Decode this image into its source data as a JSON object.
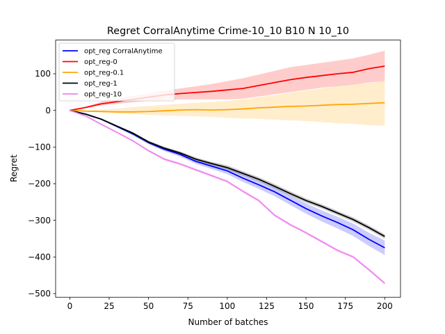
{
  "chart_data": {
    "type": "line",
    "title": "Regret CorralAnytime Crime-10_10 B10 N 10_10",
    "xlabel": "Number of batches",
    "ylabel": "Regret",
    "xlim": [
      -9,
      210
    ],
    "ylim": [
      -510,
      192
    ],
    "xticks": [
      0,
      25,
      50,
      75,
      100,
      125,
      150,
      175,
      200
    ],
    "yticks": [
      -500,
      -400,
      -300,
      -200,
      -100,
      0,
      100
    ],
    "grid": false,
    "legend_position": "top-left",
    "series": [
      {
        "name": "opt_reg CorralAnytime",
        "color": "#0000ff",
        "x": [
          0,
          10,
          20,
          30,
          40,
          50,
          60,
          70,
          80,
          90,
          100,
          110,
          120,
          130,
          140,
          150,
          160,
          170,
          180,
          190,
          200
        ],
        "y": [
          0,
          -10,
          -24,
          -44,
          -64,
          -88,
          -106,
          -120,
          -139,
          -152,
          -165,
          -185,
          -203,
          -222,
          -245,
          -268,
          -288,
          -306,
          -326,
          -352,
          -375
        ],
        "band_low": [
          0,
          -11,
          -26,
          -47,
          -68,
          -92,
          -111,
          -126,
          -146,
          -160,
          -174,
          -195,
          -214,
          -234,
          -258,
          -282,
          -303,
          -322,
          -343,
          -370,
          -395
        ],
        "band_high": [
          0,
          -9,
          -22,
          -41,
          -60,
          -84,
          -101,
          -114,
          -132,
          -144,
          -156,
          -175,
          -192,
          -210,
          -232,
          -254,
          -273,
          -290,
          -309,
          -334,
          -355
        ]
      },
      {
        "name": "opt_reg-0",
        "color": "#ff0000",
        "x": [
          0,
          10,
          20,
          30,
          40,
          50,
          60,
          70,
          80,
          90,
          100,
          110,
          120,
          130,
          140,
          150,
          160,
          170,
          180,
          190,
          200
        ],
        "y": [
          0,
          8,
          18,
          24,
          30,
          36,
          42,
          46,
          49,
          52,
          56,
          60,
          68,
          76,
          84,
          90,
          95,
          100,
          104,
          114,
          121
        ],
        "band_low": [
          0,
          6,
          14,
          18,
          22,
          26,
          28,
          30,
          30,
          30,
          30,
          32,
          38,
          44,
          50,
          56,
          62,
          66,
          70,
          76,
          80
        ],
        "band_high": [
          0,
          10,
          24,
          32,
          40,
          46,
          54,
          60,
          66,
          72,
          80,
          88,
          98,
          108,
          118,
          124,
          130,
          136,
          142,
          152,
          163
        ]
      },
      {
        "name": "opt_reg-0.1",
        "color": "#ffa500",
        "x": [
          0,
          10,
          20,
          30,
          40,
          50,
          60,
          70,
          80,
          90,
          100,
          110,
          120,
          130,
          140,
          150,
          160,
          170,
          180,
          190,
          200
        ],
        "y": [
          0,
          -2,
          -3,
          -4,
          -4,
          -3,
          -1,
          1,
          2,
          1,
          2,
          4,
          7,
          9,
          11,
          12,
          14,
          16,
          17,
          19,
          21
        ],
        "band_low": [
          0,
          -3,
          -6,
          -8,
          -10,
          -12,
          -14,
          -15,
          -16,
          -18,
          -20,
          -22,
          -23,
          -25,
          -27,
          -29,
          -32,
          -35,
          -37,
          -40,
          -42
        ],
        "band_high": [
          0,
          0,
          2,
          5,
          9,
          12,
          15,
          18,
          21,
          23,
          26,
          30,
          36,
          42,
          48,
          54,
          60,
          66,
          70,
          75,
          80
        ]
      },
      {
        "name": "opt_reg-1",
        "color": "#000000",
        "x": [
          0,
          10,
          20,
          30,
          40,
          50,
          60,
          70,
          80,
          90,
          100,
          110,
          120,
          130,
          140,
          150,
          160,
          170,
          180,
          190,
          200
        ],
        "y": [
          0,
          -10,
          -24,
          -43,
          -62,
          -86,
          -103,
          -116,
          -133,
          -145,
          -156,
          -172,
          -188,
          -207,
          -227,
          -246,
          -262,
          -280,
          -298,
          -320,
          -344
        ],
        "band_low": [
          0,
          -11,
          -26,
          -45,
          -65,
          -89,
          -107,
          -120,
          -138,
          -150,
          -162,
          -178,
          -194,
          -213,
          -233,
          -252,
          -268,
          -286,
          -304,
          -326,
          -350
        ],
        "band_high": [
          0,
          -9,
          -22,
          -41,
          -59,
          -83,
          -99,
          -112,
          -128,
          -140,
          -150,
          -166,
          -182,
          -201,
          -221,
          -240,
          -256,
          -274,
          -292,
          -314,
          -338
        ]
      },
      {
        "name": "opt_reg-10",
        "color": "#ee82ee",
        "x": [
          0,
          10,
          20,
          30,
          40,
          50,
          60,
          70,
          80,
          90,
          100,
          110,
          120,
          130,
          140,
          150,
          160,
          170,
          180,
          190,
          200
        ],
        "y": [
          0,
          -15,
          -38,
          -60,
          -83,
          -110,
          -133,
          -146,
          -162,
          -178,
          -194,
          -221,
          -246,
          -286,
          -312,
          -334,
          -358,
          -382,
          -400,
          -435,
          -472
        ],
        "band_low": [
          0,
          -16,
          -40,
          -62,
          -86,
          -113,
          -137,
          -150,
          -166,
          -182,
          -198,
          -225,
          -250,
          -290,
          -316,
          -338,
          -362,
          -386,
          -404,
          -439,
          -476
        ],
        "band_high": [
          0,
          -14,
          -36,
          -58,
          -80,
          -107,
          -129,
          -142,
          -158,
          -174,
          -190,
          -217,
          -242,
          -282,
          -308,
          -330,
          -354,
          -378,
          -396,
          -431,
          -468
        ]
      }
    ]
  }
}
